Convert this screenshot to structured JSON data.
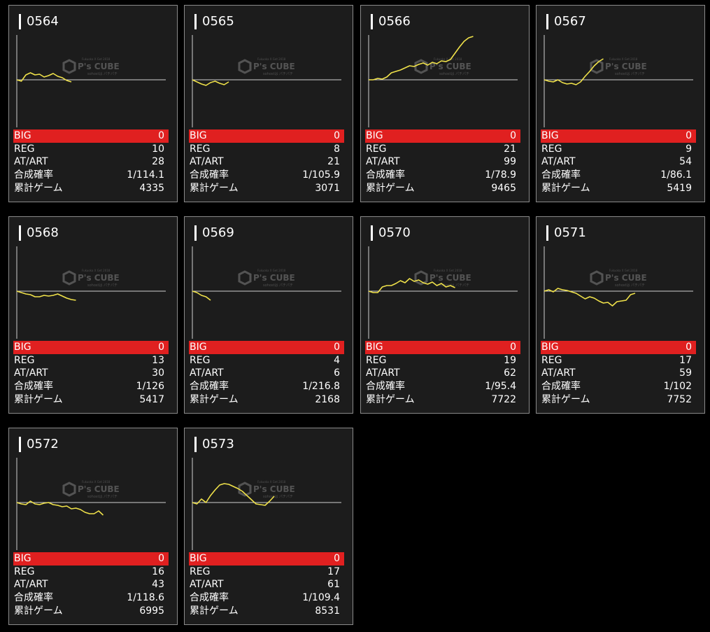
{
  "labels": {
    "big": "BIG",
    "reg": "REG",
    "atart": "AT/ART",
    "rate": "合成確率",
    "games": "累計ゲーム"
  },
  "colors": {
    "background": "#000000",
    "card": "#1c1c1c",
    "big_bar": "#e02020",
    "line": "#f0e24a",
    "axis": "#cfcfcf"
  },
  "watermark": {
    "brand": "P's CUBE",
    "top": "Fukuoka X Get 2018",
    "bottom": "sohostは パチパチ"
  },
  "machines": [
    {
      "id": "0564",
      "big": "0",
      "reg": "10",
      "atart": "28",
      "rate": "1/114.1",
      "games": "4335",
      "trend": [
        0,
        -2,
        7,
        10,
        7,
        8,
        4,
        6,
        9,
        5,
        3,
        -1,
        -3
      ]
    },
    {
      "id": "0565",
      "big": "0",
      "reg": "8",
      "atart": "21",
      "rate": "1/105.9",
      "games": "3071",
      "trend": [
        0,
        -3,
        -6,
        -8,
        -4,
        -2,
        -5,
        -7,
        -3
      ]
    },
    {
      "id": "0566",
      "big": "0",
      "reg": "21",
      "atart": "99",
      "rate": "1/78.9",
      "games": "9465",
      "trend": [
        0,
        0,
        2,
        1,
        4,
        10,
        12,
        14,
        17,
        20,
        19,
        22,
        24,
        21,
        25,
        23,
        27,
        26,
        29,
        38,
        47,
        55,
        60,
        62
      ]
    },
    {
      "id": "0567",
      "big": "0",
      "reg": "9",
      "atart": "54",
      "rate": "1/86.1",
      "games": "5419",
      "trend": [
        0,
        -2,
        -3,
        0,
        -4,
        -6,
        -5,
        -7,
        -3,
        5,
        12,
        20,
        26,
        30
      ]
    },
    {
      "id": "0568",
      "big": "0",
      "reg": "13",
      "atart": "30",
      "rate": "1/126",
      "games": "5417",
      "trend": [
        0,
        -2,
        -4,
        -5,
        -8,
        -8,
        -6,
        -7,
        -6,
        -4,
        -7,
        -10,
        -12,
        -13
      ]
    },
    {
      "id": "0569",
      "big": "0",
      "reg": "4",
      "atart": "6",
      "rate": "1/216.8",
      "games": "2168",
      "trend": [
        0,
        -2,
        -6,
        -8,
        -13
      ]
    },
    {
      "id": "0570",
      "big": "0",
      "reg": "19",
      "atart": "62",
      "rate": "1/95.4",
      "games": "7722",
      "trend": [
        0,
        -2,
        -2,
        6,
        8,
        8,
        11,
        15,
        12,
        18,
        14,
        16,
        12,
        10,
        13,
        8,
        11,
        6,
        8,
        5
      ]
    },
    {
      "id": "0571",
      "big": "0",
      "reg": "17",
      "atart": "59",
      "rate": "1/102",
      "games": "7752",
      "trend": [
        0,
        2,
        -1,
        4,
        2,
        1,
        -1,
        -3,
        -7,
        -11,
        -8,
        -10,
        -14,
        -17,
        -16,
        -21,
        -15,
        -14,
        -13,
        -5,
        -3
      ]
    },
    {
      "id": "0572",
      "big": "0",
      "reg": "16",
      "atart": "43",
      "rate": "1/118.6",
      "games": "6995",
      "trend": [
        0,
        -2,
        -3,
        2,
        -2,
        -3,
        -1,
        0,
        -3,
        -4,
        -6,
        -5,
        -9,
        -8,
        -10,
        -14,
        -16,
        -16,
        -12,
        -18
      ]
    },
    {
      "id": "0573",
      "big": "0",
      "reg": "17",
      "atart": "61",
      "rate": "1/109.4",
      "games": "8531",
      "trend": [
        0,
        -2,
        5,
        0,
        10,
        18,
        25,
        27,
        26,
        23,
        20,
        16,
        10,
        4,
        -2,
        -3,
        -4,
        2,
        9
      ]
    }
  ]
}
